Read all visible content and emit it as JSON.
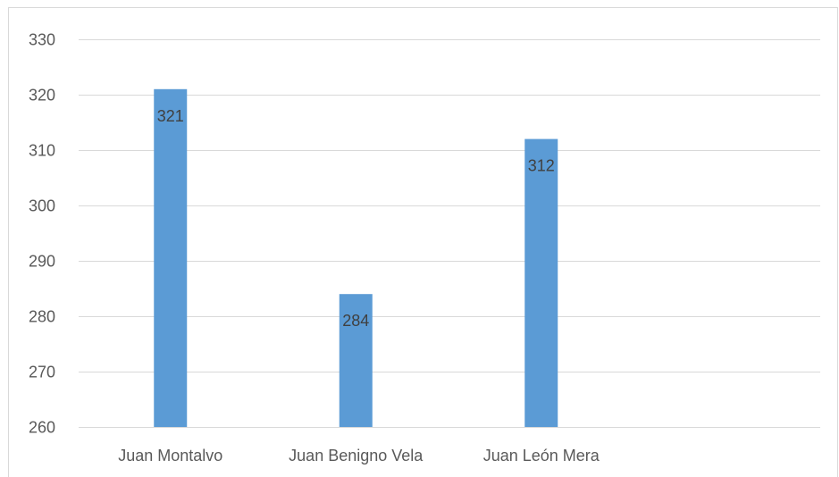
{
  "chart_data": {
    "type": "bar",
    "title": "",
    "xlabel": "",
    "ylabel": "",
    "categories": [
      "Juan Montalvo",
      "Juan Benigno Vela",
      "Juan León Mera"
    ],
    "values": [
      321,
      284,
      312
    ],
    "data_labels": [
      "321",
      "284",
      "312"
    ],
    "ylim": [
      260,
      330
    ],
    "yticks": [
      260,
      270,
      280,
      290,
      300,
      310,
      320,
      330
    ],
    "ytick_labels": [
      "260",
      "270",
      "280",
      "290",
      "300",
      "310",
      "320",
      "330"
    ],
    "grid": true,
    "legend": "none",
    "colors": {
      "bar": "#5b9bd5",
      "grid": "#d9d9d9",
      "axis_text": "#595959",
      "data_label": "#404040"
    }
  }
}
